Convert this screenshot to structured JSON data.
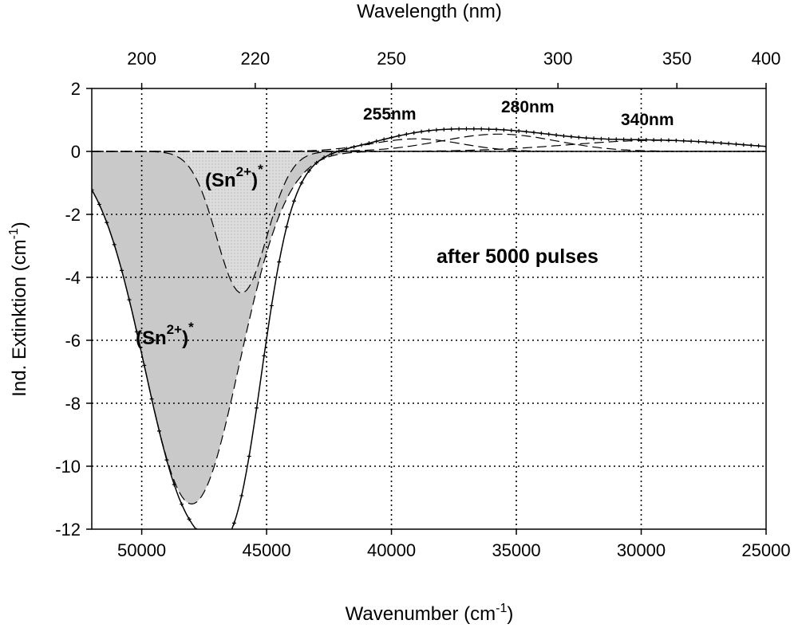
{
  "chart_data": {
    "type": "line",
    "xlabel": "Wavenumber (cm",
    "xlabel_sup": "-1",
    "xlabel_suffix": ")",
    "ylabel": "Ind. Extinktion (cm",
    "ylabel_sup": "-1",
    "ylabel_suffix": ")",
    "x2label": "Wavelength (nm)",
    "xlim": [
      52000,
      25000
    ],
    "ylim": [
      -12,
      2
    ],
    "x_ticks": [
      50000,
      45000,
      40000,
      35000,
      30000,
      25000
    ],
    "y_ticks": [
      2,
      0,
      -2,
      -4,
      -6,
      -8,
      -10,
      -12
    ],
    "x2_ticks": [
      200,
      220,
      250,
      300,
      350,
      400
    ],
    "grid": true,
    "annotations": {
      "pulses": "after 5000 pulses",
      "p255": "255nm",
      "p280": "280nm",
      "p340": "340nm",
      "sn_base": "(Sn",
      "sn_sup": "2+",
      "sn_close": ")",
      "star": "*"
    },
    "series": [
      {
        "style": "filled-dark",
        "center": 48000,
        "width": 1900,
        "amplitude": -11.2
      },
      {
        "style": "filled-light",
        "center": 46000,
        "width": 1000,
        "amplitude": -4.5
      },
      {
        "style": "dashed",
        "center": 39000,
        "width": 1800,
        "amplitude": 0.4
      },
      {
        "style": "dashed",
        "center": 35700,
        "width": 2300,
        "amplitude": 0.55
      },
      {
        "style": "dashed",
        "center": 29400,
        "width": 3500,
        "amplitude": 0.35
      },
      {
        "style": "solid-fit",
        "source": "sum"
      },
      {
        "style": "markers-measured",
        "source": "sum",
        "x_step": 300
      }
    ]
  }
}
